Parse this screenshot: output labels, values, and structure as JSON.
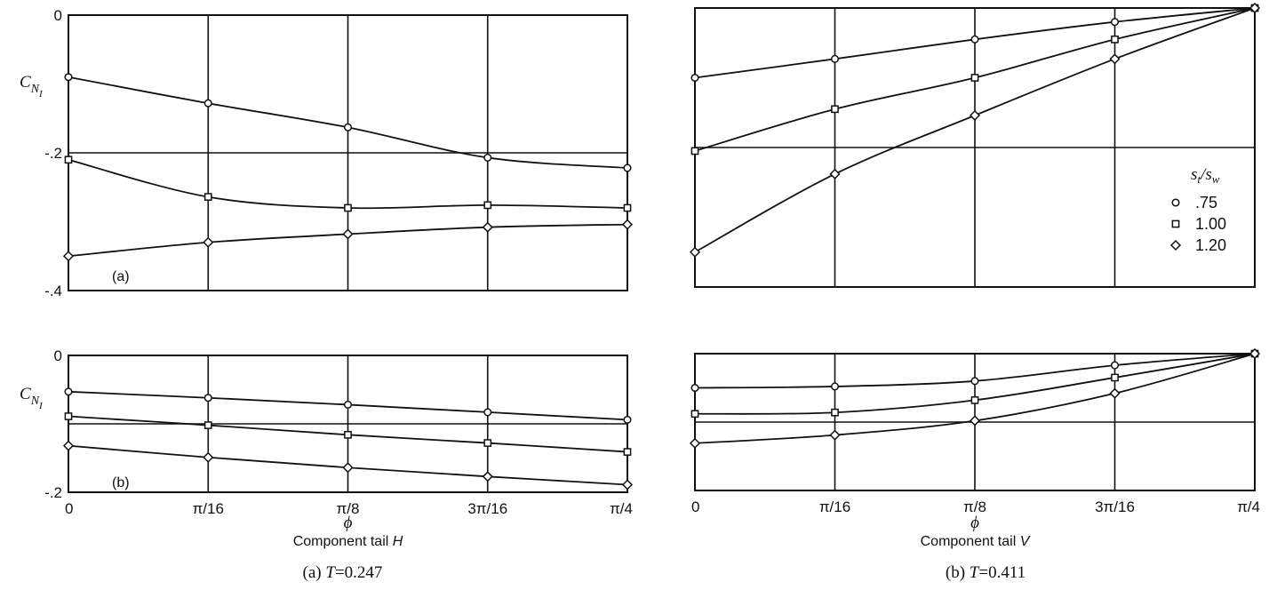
{
  "chart_data": [
    {
      "type": "line",
      "panel": "top-left",
      "x_ticks": [
        "0",
        "π/16",
        "π/8",
        "3π/16",
        "π/4"
      ],
      "y_ticks": [
        "0",
        "-.2",
        "-.4"
      ],
      "ylabel": "C_NI",
      "ylabel_main": "C",
      "ylabel_sub": "N",
      "ylabel_subsub": "I",
      "ylim": [
        -0.4,
        0
      ],
      "annotation": "(a)",
      "x": [
        0,
        0.19635,
        0.3927,
        0.58905,
        0.7854
      ],
      "series": [
        {
          "marker": "circle",
          "values": [
            -0.09,
            -0.128,
            -0.163,
            -0.207,
            -0.222
          ]
        },
        {
          "marker": "square",
          "values": [
            -0.21,
            -0.264,
            -0.28,
            -0.276,
            -0.28
          ]
        },
        {
          "marker": "diamond",
          "values": [
            -0.35,
            -0.33,
            -0.318,
            -0.308,
            -0.304
          ]
        }
      ]
    },
    {
      "type": "line",
      "panel": "top-right",
      "y_ticks": [],
      "ylim": [
        -0.4,
        0
      ],
      "x": [
        0,
        0.19635,
        0.3927,
        0.58905,
        0.7854
      ],
      "legend": {
        "title": "s_t/s_w",
        "title_main": "s",
        "title_sub1": "t",
        "title_sub2": "w",
        "entries": [
          ".75",
          "1.00",
          "1.20"
        ]
      },
      "series": [
        {
          "name": ".75",
          "marker": "circle",
          "values": [
            -0.1,
            -0.073,
            -0.045,
            -0.02,
            0
          ]
        },
        {
          "name": "1.00",
          "marker": "square",
          "values": [
            -0.205,
            -0.145,
            -0.1,
            -0.045,
            0
          ]
        },
        {
          "name": "1.20",
          "marker": "diamond",
          "values": [
            -0.35,
            -0.238,
            -0.154,
            -0.073,
            0
          ]
        }
      ]
    },
    {
      "type": "line",
      "panel": "bottom-left",
      "x_ticks": [
        "0",
        "π/16",
        "π/8",
        "3π/16",
        "π/4"
      ],
      "y_ticks": [
        "0",
        "-.2"
      ],
      "ylabel": "C_NI",
      "ylabel_main": "C",
      "ylabel_sub": "N",
      "ylabel_subsub": "I",
      "xlabel": "ϕ",
      "subtitle": "Component tail H",
      "subtitle_text": "Component tail ",
      "subtitle_var": "H",
      "caption_prefix": "(a)  ",
      "caption_var": "T",
      "caption_value": "=0.247",
      "ylim": [
        -0.2,
        0
      ],
      "annotation": "(b)",
      "x": [
        0,
        0.19635,
        0.3927,
        0.58905,
        0.7854
      ],
      "series": [
        {
          "marker": "circle",
          "values": [
            -0.053,
            -0.062,
            -0.072,
            -0.083,
            -0.094
          ]
        },
        {
          "marker": "square",
          "values": [
            -0.089,
            -0.102,
            -0.116,
            -0.128,
            -0.141
          ]
        },
        {
          "marker": "diamond",
          "values": [
            -0.132,
            -0.149,
            -0.164,
            -0.177,
            -0.189
          ]
        }
      ]
    },
    {
      "type": "line",
      "panel": "bottom-right",
      "x_ticks": [
        "0",
        "π/16",
        "π/8",
        "3π/16",
        "π/4"
      ],
      "y_ticks": [],
      "xlabel": "ϕ",
      "subtitle": "Component tail V",
      "subtitle_text": "Component tail ",
      "subtitle_var": "V",
      "caption_prefix": "(b)  ",
      "caption_var": "T",
      "caption_value": "=0.411",
      "ylim": [
        -0.2,
        0
      ],
      "x": [
        0,
        0.19635,
        0.3927,
        0.58905,
        0.7854
      ],
      "series": [
        {
          "marker": "circle",
          "values": [
            -0.05,
            -0.048,
            -0.04,
            -0.017,
            0
          ]
        },
        {
          "marker": "square",
          "values": [
            -0.088,
            -0.086,
            -0.068,
            -0.035,
            0
          ]
        },
        {
          "marker": "diamond",
          "values": [
            -0.131,
            -0.119,
            -0.098,
            -0.058,
            0
          ]
        }
      ]
    }
  ]
}
